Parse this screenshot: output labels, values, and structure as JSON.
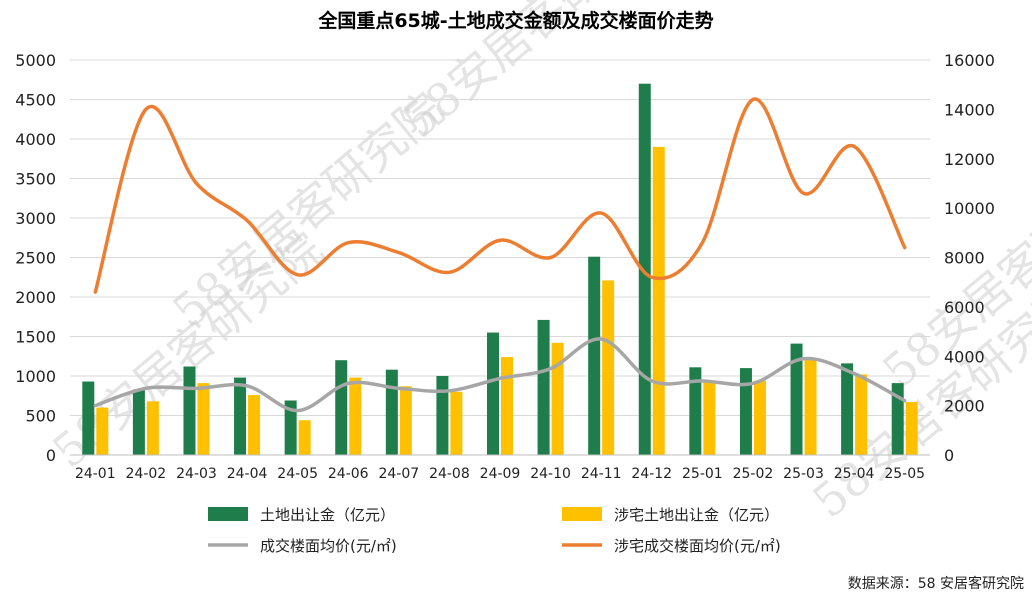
{
  "chart_data": {
    "type": "bar",
    "title": "全国重点65城-土地成交金额及成交楼面价走势",
    "categories": [
      "24-01",
      "24-02",
      "24-03",
      "24-04",
      "24-05",
      "24-06",
      "24-07",
      "24-08",
      "24-09",
      "24-10",
      "24-11",
      "24-12",
      "25-01",
      "25-02",
      "25-03",
      "25-04",
      "25-05"
    ],
    "ylim_left": [
      0,
      5000
    ],
    "yticks_left": [
      0,
      500,
      1000,
      1500,
      2000,
      2500,
      3000,
      3500,
      4000,
      4500,
      5000
    ],
    "ylim_right": [
      0,
      16000
    ],
    "yticks_right": [
      0,
      2000,
      4000,
      6000,
      8000,
      10000,
      12000,
      14000,
      16000
    ],
    "series": [
      {
        "name": "土地出让金（亿元）",
        "type": "bar",
        "axis": "left",
        "color": "#1e7d4a",
        "values": [
          930,
          830,
          1120,
          980,
          690,
          1200,
          1080,
          1000,
          1550,
          1710,
          2510,
          4700,
          1110,
          1100,
          1410,
          1160,
          910
        ]
      },
      {
        "name": "涉宅土地出让金（亿元）",
        "type": "bar",
        "axis": "left",
        "color": "#ffc000",
        "values": [
          600,
          680,
          910,
          760,
          440,
          980,
          870,
          800,
          1240,
          1420,
          2210,
          3900,
          940,
          940,
          1220,
          1020,
          670
        ]
      },
      {
        "name": "成交楼面均价(元/㎡)",
        "type": "line",
        "axis": "right",
        "color": "#a6a6a6",
        "values": [
          2000,
          2700,
          2700,
          2800,
          1800,
          2900,
          2700,
          2600,
          3100,
          3500,
          4700,
          3000,
          3000,
          2900,
          3900,
          3300,
          2200
        ]
      },
      {
        "name": "涉宅成交楼面均价(元/㎡)",
        "type": "line",
        "axis": "right",
        "color": "#ed7d31",
        "values": [
          6600,
          14000,
          11000,
          9500,
          7300,
          8600,
          8200,
          7400,
          8700,
          8000,
          9800,
          7200,
          8600,
          14400,
          10600,
          12500,
          8400
        ]
      }
    ],
    "source": "数据来源：58 安居客研究院",
    "watermark": "58安居客研究院",
    "grid": true,
    "legend_position": "bottom"
  }
}
